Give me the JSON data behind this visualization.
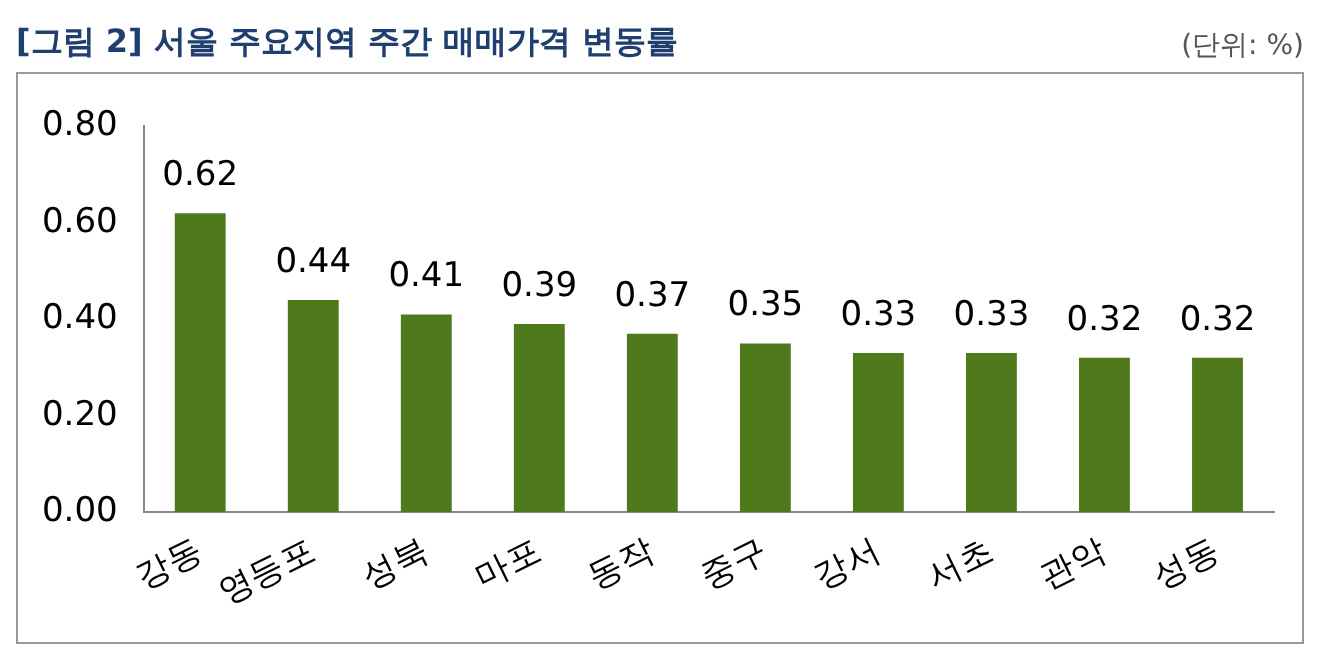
{
  "chart_data": {
    "type": "bar",
    "title": "[그림 2] 서울 주요지역 주간 매매가격 변동률",
    "annotations": [
      "(단위: %)"
    ],
    "categories": [
      "강동",
      "영등포",
      "성북",
      "마포",
      "동작",
      "중구",
      "강서",
      "서초",
      "관악",
      "성동"
    ],
    "values": [
      0.62,
      0.44,
      0.41,
      0.39,
      0.37,
      0.35,
      0.33,
      0.33,
      0.32,
      0.32
    ],
    "color": "#4f7a1c",
    "ylim": [
      0,
      0.8
    ],
    "yticks": [
      {
        "value": 0,
        "label": "0.00"
      },
      {
        "value": 0.2,
        "label": "0.20"
      },
      {
        "value": 0.4,
        "label": "0.40"
      },
      {
        "value": 0.6,
        "label": "0.60"
      },
      {
        "value": 0.8,
        "label": "0.80"
      }
    ],
    "grid": false,
    "legend": false,
    "data_labels": true
  }
}
